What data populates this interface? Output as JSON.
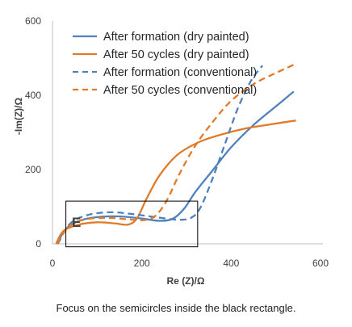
{
  "chart_data": {
    "type": "line",
    "title": "",
    "xlabel": "Re (Z)/Ω",
    "ylabel": "-Im(Z)/Ω",
    "xlim": [
      0,
      600
    ],
    "ylim": [
      0,
      600
    ],
    "xticks": [
      "0",
      "200",
      "400",
      "600"
    ],
    "yticks": [
      "0",
      "200",
      "400",
      "600"
    ],
    "grid": false,
    "legend_position": "top-right (inside plot)",
    "panel_letter": "E",
    "highlight_box": {
      "x_range": [
        30,
        325
      ],
      "y_range": [
        -8,
        115
      ]
    },
    "series": [
      {
        "name": "After formation (dry painted)",
        "color": "#4f81bd",
        "dash": "solid",
        "points": [
          [
            10,
            0
          ],
          [
            30,
            40
          ],
          [
            60,
            62
          ],
          [
            100,
            72
          ],
          [
            150,
            74
          ],
          [
            200,
            68
          ],
          [
            240,
            62
          ],
          [
            270,
            68
          ],
          [
            295,
            95
          ],
          [
            320,
            140
          ],
          [
            360,
            200
          ],
          [
            400,
            260
          ],
          [
            450,
            320
          ],
          [
            500,
            370
          ],
          [
            540,
            410
          ]
        ]
      },
      {
        "name": "After 50 cycles (dry painted)",
        "color": "#e07b2a",
        "dash": "solid",
        "points": [
          [
            8,
            0
          ],
          [
            25,
            35
          ],
          [
            60,
            52
          ],
          [
            100,
            58
          ],
          [
            140,
            55
          ],
          [
            170,
            52
          ],
          [
            190,
            70
          ],
          [
            210,
            120
          ],
          [
            240,
            185
          ],
          [
            280,
            240
          ],
          [
            330,
            275
          ],
          [
            380,
            295
          ],
          [
            430,
            310
          ],
          [
            490,
            322
          ],
          [
            545,
            332
          ]
        ]
      },
      {
        "name": "After formation (conventional)",
        "color": "#4f81bd",
        "dash": "dashed",
        "points": [
          [
            12,
            0
          ],
          [
            40,
            55
          ],
          [
            80,
            78
          ],
          [
            130,
            85
          ],
          [
            180,
            80
          ],
          [
            230,
            72
          ],
          [
            280,
            65
          ],
          [
            310,
            70
          ],
          [
            330,
            95
          ],
          [
            355,
            165
          ],
          [
            385,
            265
          ],
          [
            415,
            365
          ],
          [
            445,
            440
          ],
          [
            470,
            480
          ]
        ]
      },
      {
        "name": "After 50 cycles (conventional)",
        "color": "#e07b2a",
        "dash": "dashed",
        "points": [
          [
            10,
            0
          ],
          [
            35,
            45
          ],
          [
            70,
            65
          ],
          [
            120,
            70
          ],
          [
            170,
            66
          ],
          [
            205,
            64
          ],
          [
            230,
            75
          ],
          [
            255,
            115
          ],
          [
            285,
            190
          ],
          [
            320,
            265
          ],
          [
            360,
            330
          ],
          [
            400,
            385
          ],
          [
            450,
            430
          ],
          [
            500,
            460
          ],
          [
            545,
            485
          ]
        ]
      }
    ]
  },
  "caption": "Focus on the semicircles inside the black rectangle."
}
